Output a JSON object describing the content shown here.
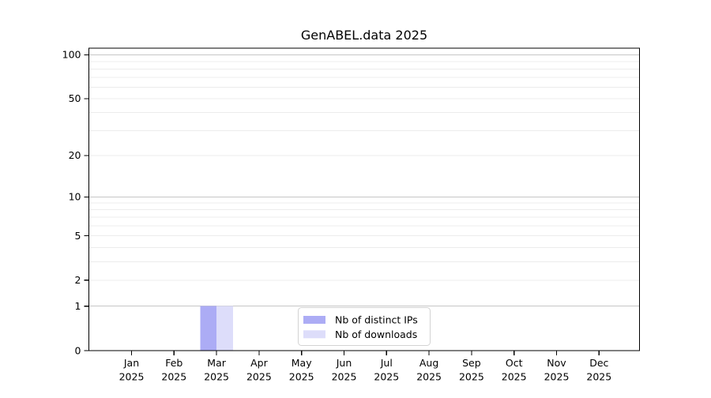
{
  "chart_data": {
    "type": "bar",
    "title": "GenABEL.data 2025",
    "categories": [
      "Jan",
      "Feb",
      "Mar",
      "Apr",
      "May",
      "Jun",
      "Jul",
      "Aug",
      "Sep",
      "Oct",
      "Nov",
      "Dec"
    ],
    "x_tick_second_line": "2025",
    "series": [
      {
        "name": "Nb of distinct IPs",
        "color": "#acacf5",
        "values": [
          0,
          0,
          1,
          0,
          0,
          0,
          0,
          0,
          0,
          0,
          0,
          0
        ]
      },
      {
        "name": "Nb of downloads",
        "color": "#ddddfa",
        "values": [
          0,
          0,
          1,
          0,
          0,
          0,
          0,
          0,
          0,
          0,
          0,
          0
        ]
      }
    ],
    "y_scale": "log1p",
    "ylim": [
      0,
      111
    ],
    "y_ticks": [
      0,
      1,
      2,
      5,
      10,
      20,
      50,
      100
    ],
    "y_grid_minor": [
      2,
      3,
      4,
      5,
      6,
      7,
      8,
      9,
      20,
      30,
      40,
      50,
      60,
      70,
      80,
      90
    ],
    "y_grid_major": [
      1,
      10,
      100
    ],
    "grid": true,
    "legend": {
      "position": "lower-center",
      "entries": [
        "Nb of distinct IPs",
        "Nb of downloads"
      ]
    },
    "colors": {
      "grid_minor": "#ececec",
      "grid_major": "#c6c6c6",
      "axis": "#000000",
      "legend_border": "#d3d3d3",
      "background": "#ffffff"
    }
  }
}
